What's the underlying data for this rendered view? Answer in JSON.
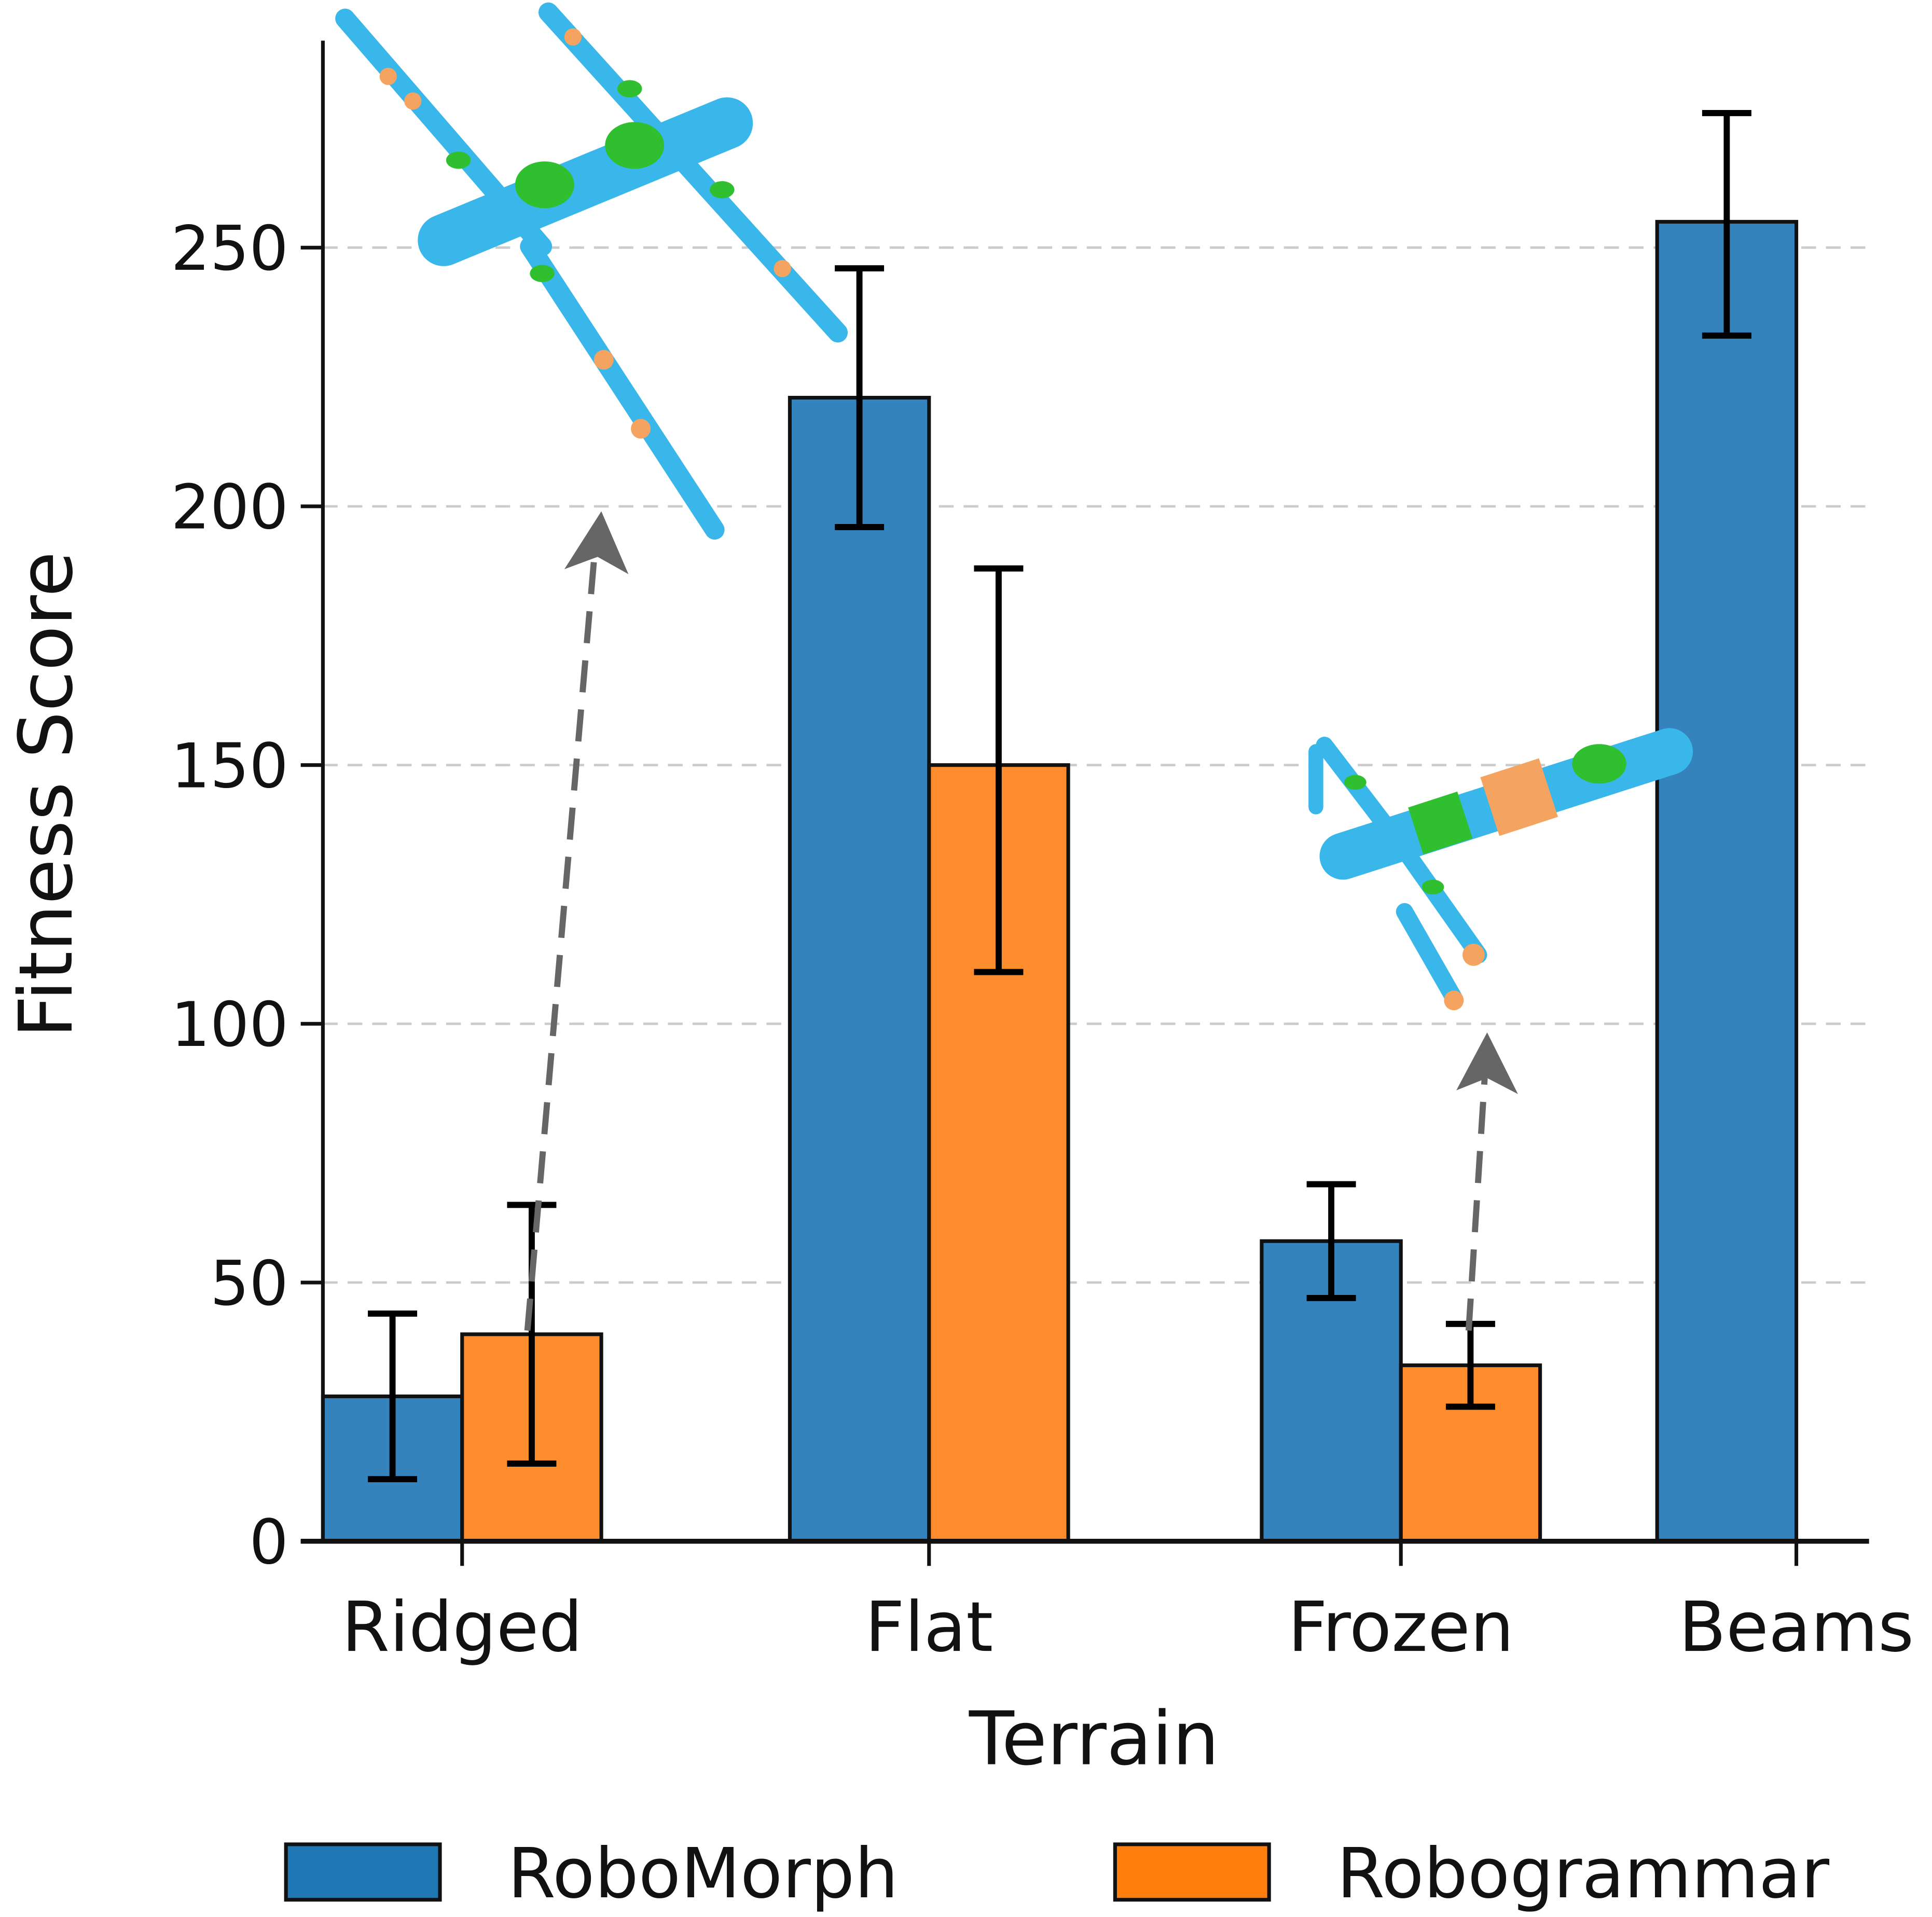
{
  "chart_data": {
    "type": "bar",
    "xlabel": "Terrain",
    "ylabel": "Fitness Score",
    "categories": [
      "Ridged",
      "Flat",
      "Frozen",
      "Beams"
    ],
    "ylim": [
      0,
      290
    ],
    "yticks": [
      0,
      50,
      100,
      150,
      200,
      250
    ],
    "grid": "horizontal dashed",
    "legend_position": "bottom",
    "series": [
      {
        "name": "RoboMorph",
        "color": "#3583bd",
        "values": [
          28,
          221,
          58,
          255
        ],
        "err_low": [
          12,
          196,
          47,
          233
        ],
        "err_high": [
          44,
          246,
          69,
          276
        ]
      },
      {
        "name": "Robogrammar",
        "color": "#fd8d2c",
        "values": [
          40,
          150,
          34,
          null
        ],
        "err_low": [
          15,
          110,
          26,
          null
        ],
        "err_high": [
          65,
          188,
          42,
          null
        ]
      }
    ],
    "legend_colors": [
      "#1f77b4",
      "#ff7f0e"
    ]
  }
}
